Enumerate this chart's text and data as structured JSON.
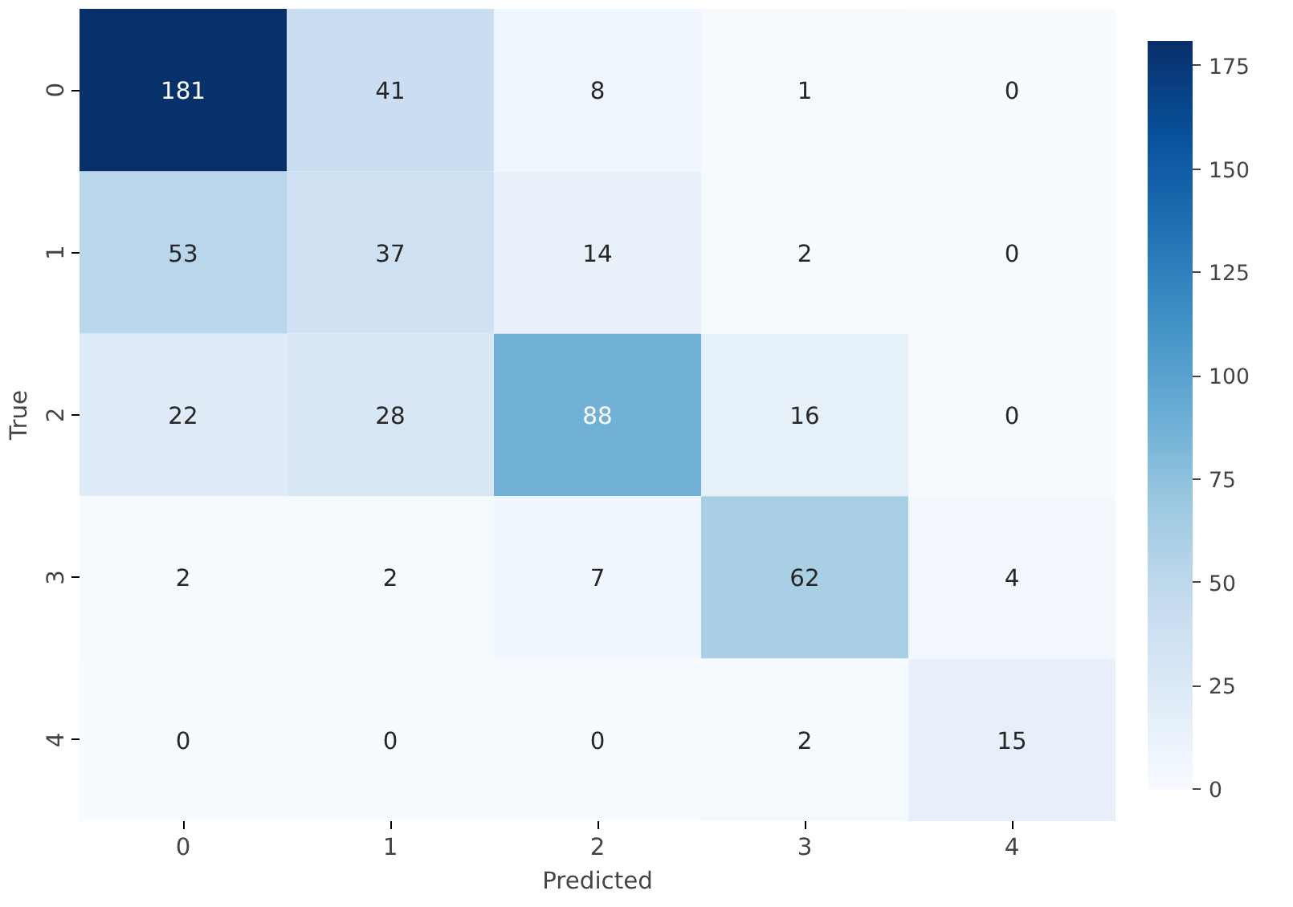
{
  "chart_data": {
    "type": "heatmap",
    "xlabel": "Predicted",
    "ylabel": "True",
    "categories": [
      "0",
      "1",
      "2",
      "3",
      "4"
    ],
    "y_categories": [
      "0",
      "1",
      "2",
      "3",
      "4"
    ],
    "cells": [
      [
        181,
        41,
        8,
        1,
        0
      ],
      [
        53,
        37,
        14,
        2,
        0
      ],
      [
        22,
        28,
        88,
        16,
        0
      ],
      [
        2,
        2,
        7,
        62,
        4
      ],
      [
        0,
        0,
        0,
        2,
        15
      ]
    ],
    "clim": [
      0,
      181
    ],
    "cticks": [
      0,
      25,
      50,
      75,
      100,
      125,
      150,
      175
    ],
    "data_labels": true
  }
}
